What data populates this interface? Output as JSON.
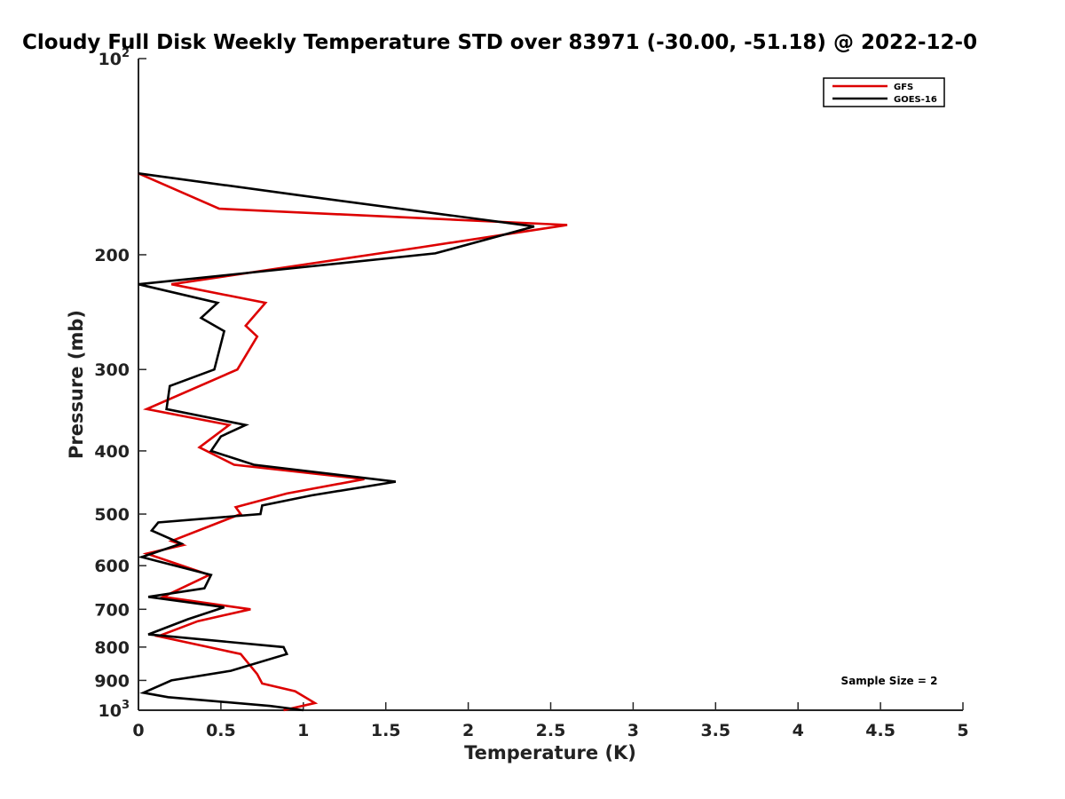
{
  "chart_data": {
    "type": "line",
    "title": "Cloudy Full Disk Weekly Temperature STD over 83971 (-30.00, -51.18) @ 2022-12-0",
    "xlabel": "Temperature (K)",
    "ylabel": "Pressure (mb)",
    "xlim": [
      0,
      5
    ],
    "ylim": [
      100,
      1000
    ],
    "y_scale": "log",
    "y_reversed": true,
    "x_ticks": [
      "0",
      "0.5",
      "1",
      "1.5",
      "2",
      "2.5",
      "3",
      "3.5",
      "4",
      "4.5",
      "5"
    ],
    "y_ticks": [
      {
        "value": 100,
        "base": "10",
        "exp": "2"
      },
      {
        "value": 200,
        "label": "200"
      },
      {
        "value": 300,
        "label": "300"
      },
      {
        "value": 400,
        "label": "400"
      },
      {
        "value": 500,
        "label": "500"
      },
      {
        "value": 600,
        "label": "600"
      },
      {
        "value": 700,
        "label": "700"
      },
      {
        "value": 800,
        "label": "800"
      },
      {
        "value": 900,
        "label": "900"
      },
      {
        "value": 1000,
        "base": "10",
        "exp": "3"
      }
    ],
    "legend_position": "top-right",
    "annotation": "Sample Size = 2",
    "series": [
      {
        "name": "GFS",
        "color": "#dd0000",
        "x": [
          0,
          0.49,
          2.6,
          1.7,
          0.2,
          0.77,
          0.65,
          0.72,
          0.6,
          0.05,
          0.55,
          0.37,
          0.58,
          1.37,
          0.9,
          0.59,
          0.62,
          0.2,
          0.27,
          0.05,
          0.43,
          0.15,
          0.68,
          0.36,
          0.12,
          0.62,
          0.72,
          0.75,
          0.95,
          1.07,
          0.88
        ],
        "y": [
          150,
          170,
          180,
          195,
          222,
          237,
          257,
          267,
          300,
          345,
          365,
          395,
          420,
          442,
          465,
          488,
          500,
          550,
          558,
          575,
          620,
          670,
          700,
          730,
          770,
          820,
          880,
          910,
          935,
          975,
          1000
        ]
      },
      {
        "name": "GOES-16",
        "color": "#000000",
        "x": [
          0,
          0.97,
          2.4,
          1.8,
          0,
          0.48,
          0.38,
          0.52,
          0.46,
          0.19,
          0.17,
          0.65,
          0.5,
          0.44,
          0.7,
          1.56,
          1.05,
          0.75,
          0.74,
          0.12,
          0.08,
          0.26,
          0.02,
          0.44,
          0.4,
          0.06,
          0.52,
          0.3,
          0.06,
          0.88,
          0.9,
          0.56,
          0.2,
          0.03,
          0.18,
          0.8,
          1.0
        ],
        "y": [
          150,
          162,
          181,
          199,
          222,
          237,
          250,
          262,
          300,
          318,
          345,
          365,
          380,
          400,
          420,
          446,
          468,
          485,
          500,
          515,
          530,
          555,
          582,
          620,
          650,
          670,
          695,
          725,
          765,
          800,
          820,
          870,
          900,
          940,
          955,
          985,
          1000
        ]
      }
    ]
  }
}
